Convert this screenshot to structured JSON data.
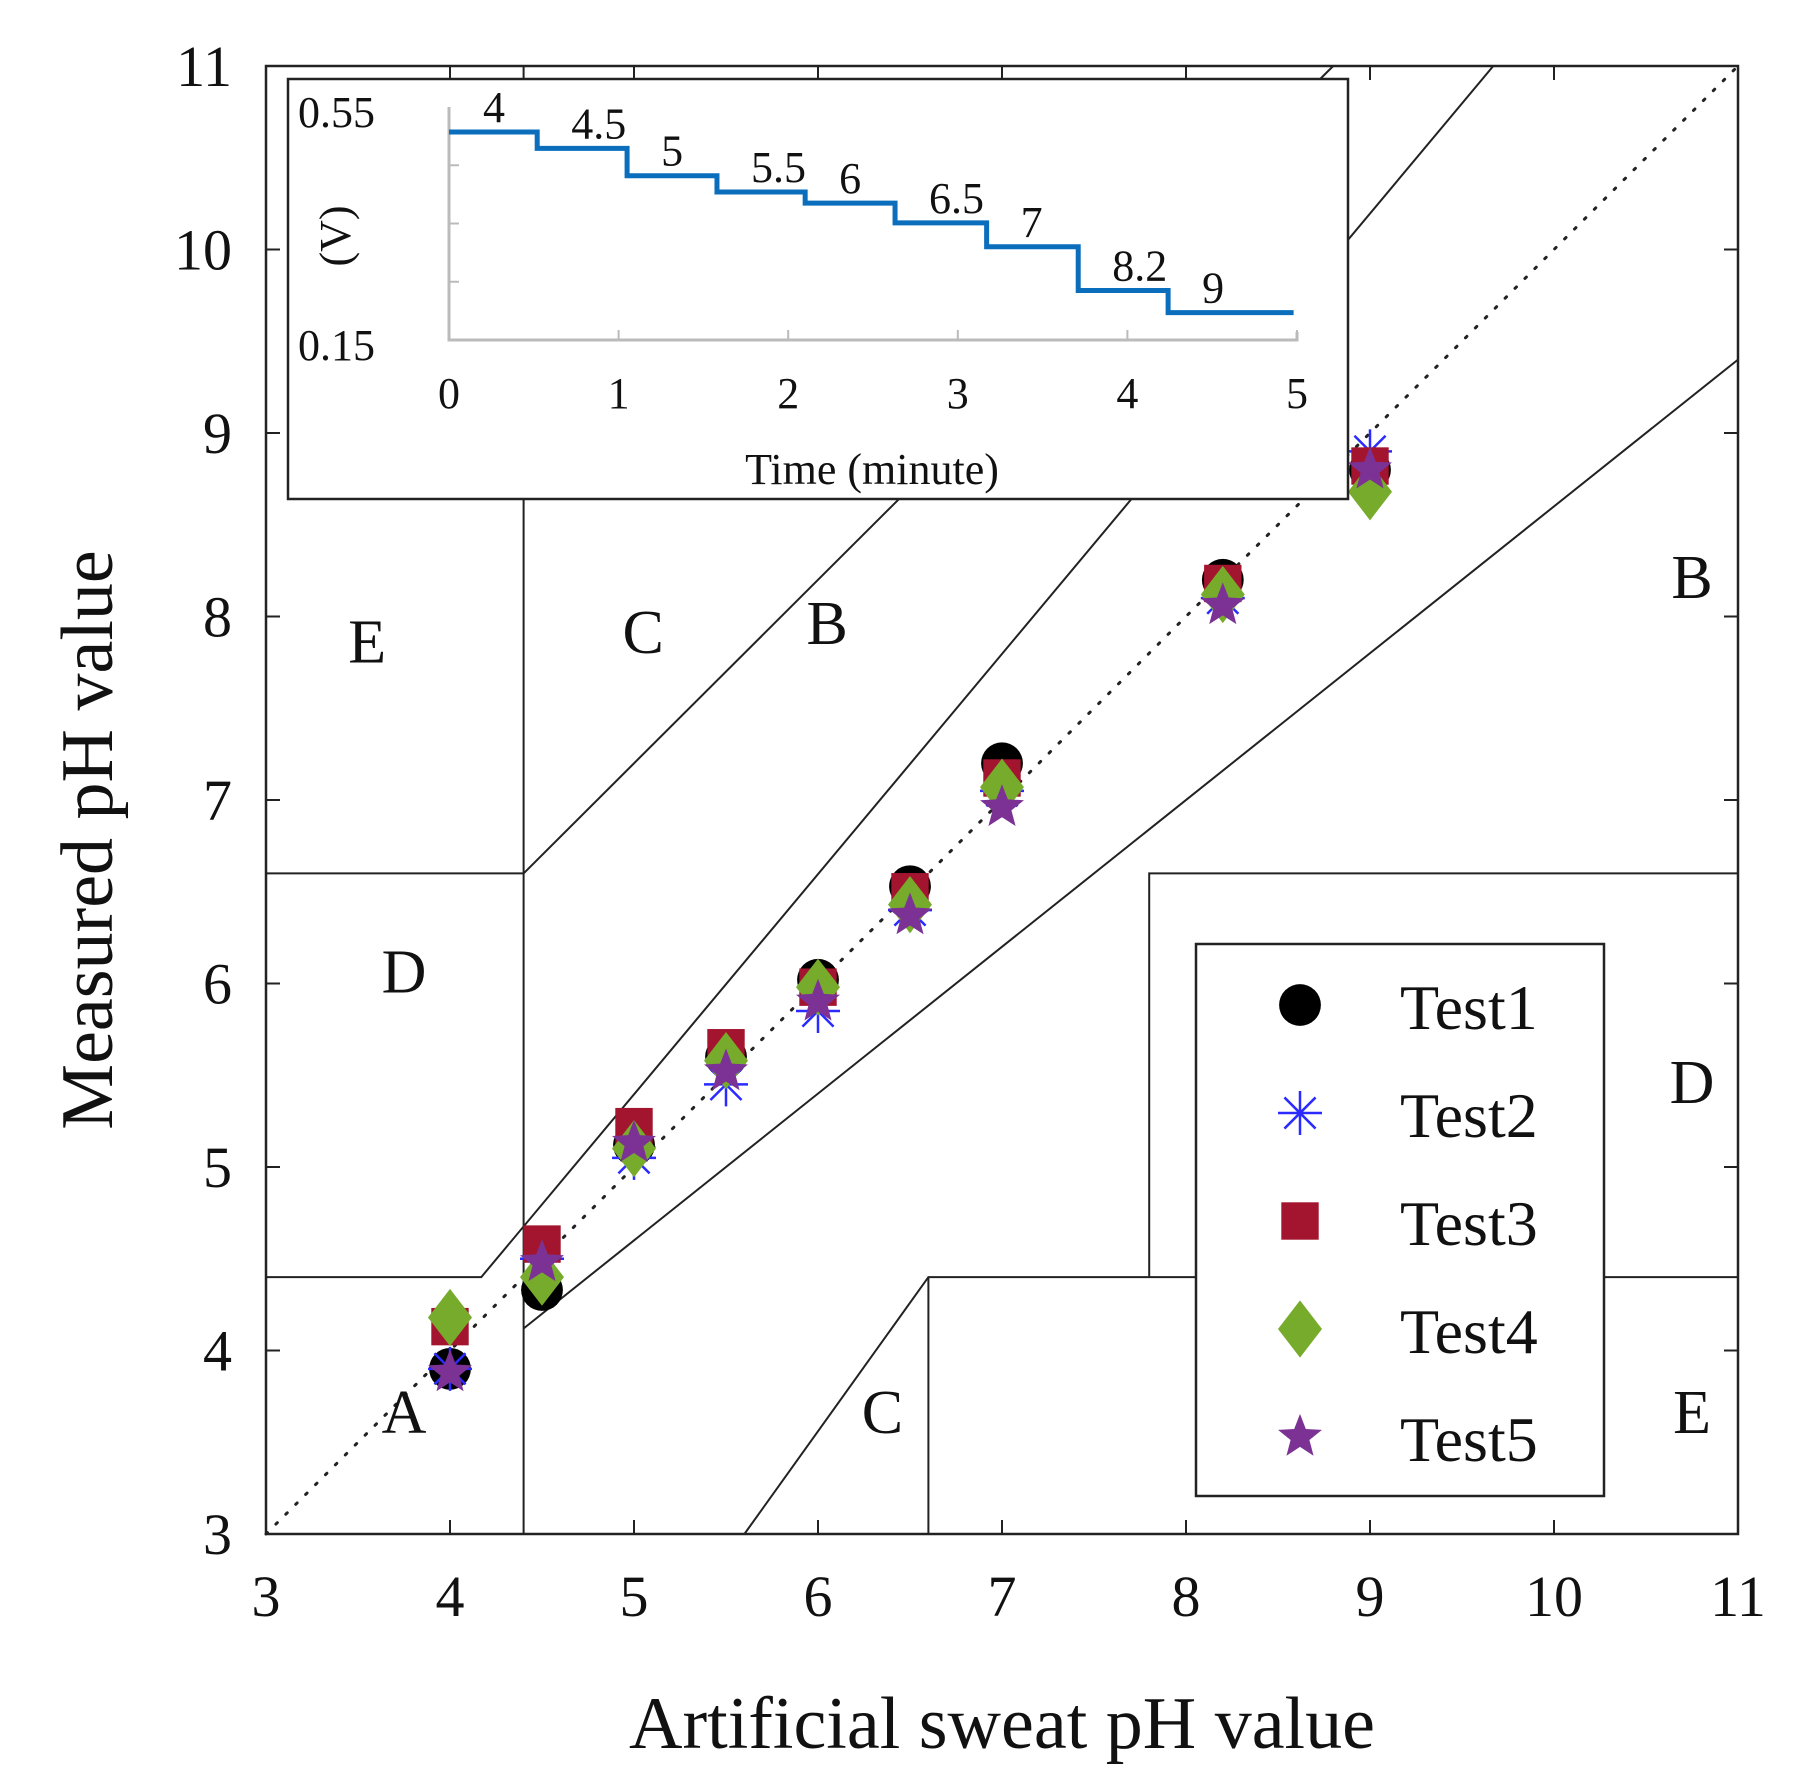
{
  "chart_data": {
    "type": "scatter",
    "title": "",
    "xlabel": "Artificial sweat pH value",
    "ylabel": "Measured pH value",
    "xlim": [
      3,
      11
    ],
    "ylim": [
      3,
      11
    ],
    "xticks": [
      "3",
      "4",
      "5",
      "6",
      "7",
      "8",
      "9",
      "10",
      "11"
    ],
    "yticks": [
      "3",
      "4",
      "5",
      "6",
      "7",
      "8",
      "9",
      "10",
      "11"
    ],
    "legend_position": "bottom-right",
    "x": [
      4,
      4.5,
      5,
      5.5,
      6,
      6.5,
      7,
      8.2,
      9
    ],
    "series": [
      {
        "name": "Test1",
        "marker": "circle",
        "color": "#000000",
        "values": [
          3.9,
          4.33,
          5.12,
          5.6,
          6.02,
          6.53,
          7.2,
          8.2,
          8.8
        ]
      },
      {
        "name": "Test2",
        "marker": "asterisk",
        "color": "#2b2bff",
        "values": [
          3.9,
          4.5,
          5.05,
          5.45,
          5.85,
          6.4,
          7.05,
          8.1,
          8.9
        ]
      },
      {
        "name": "Test3",
        "marker": "square",
        "color": "#a3152f",
        "values": [
          4.13,
          4.58,
          5.22,
          5.65,
          5.98,
          6.5,
          7.12,
          8.18,
          8.82
        ]
      },
      {
        "name": "Test4",
        "marker": "diamond",
        "color": "#77ab2b",
        "values": [
          4.18,
          4.4,
          5.1,
          5.58,
          5.98,
          6.43,
          7.07,
          8.12,
          8.68
        ]
      },
      {
        "name": "Test5",
        "marker": "star",
        "color": "#7b3294",
        "values": [
          3.88,
          4.48,
          5.13,
          5.52,
          5.9,
          6.37,
          6.96,
          8.06,
          8.8
        ]
      }
    ],
    "identity_line": {
      "from": [
        3,
        3
      ],
      "to": [
        11,
        11
      ],
      "style": "dotted"
    },
    "zone_lines": [
      [
        [
          4.4,
          3
        ],
        [
          4.4,
          11
        ]
      ],
      [
        [
          3,
          6.6
        ],
        [
          4.4,
          6.6
        ]
      ],
      [
        [
          3,
          4.4
        ],
        [
          4.17,
          4.4
        ],
        [
          9.67,
          11
        ]
      ],
      [
        [
          4.4,
          4.12
        ],
        [
          11,
          9.4
        ]
      ],
      [
        [
          4.4,
          6.6
        ],
        [
          8.8,
          11
        ]
      ],
      [
        [
          5.6,
          3
        ],
        [
          6.6,
          4.4
        ],
        [
          11,
          4.4
        ]
      ],
      [
        [
          6.6,
          3
        ],
        [
          6.6,
          4.4
        ]
      ],
      [
        [
          7.8,
          4.4
        ],
        [
          7.8,
          6.6
        ],
        [
          11,
          6.6
        ]
      ]
    ],
    "zone_labels": [
      {
        "text": "E",
        "x": 3.55,
        "y": 7.75
      },
      {
        "text": "C",
        "x": 5.05,
        "y": 7.8
      },
      {
        "text": "B",
        "x": 6.05,
        "y": 7.85
      },
      {
        "text": "B",
        "x": 10.75,
        "y": 8.1
      },
      {
        "text": "D",
        "x": 3.75,
        "y": 5.95
      },
      {
        "text": "D",
        "x": 10.75,
        "y": 5.35
      },
      {
        "text": "A",
        "x": 3.75,
        "y": 3.55
      },
      {
        "text": "C",
        "x": 6.35,
        "y": 3.55
      },
      {
        "text": "E",
        "x": 10.75,
        "y": 3.55
      }
    ],
    "inset": {
      "type": "line",
      "xlabel": "Time (minute)",
      "ylabel": "(V)",
      "xlim": [
        0,
        5
      ],
      "ylim": [
        0.15,
        0.55
      ],
      "xticks": [
        "0",
        "1",
        "2",
        "3",
        "4",
        "5"
      ],
      "yticks": [
        "0.15",
        "0.55"
      ],
      "color": "#0a6ebd",
      "steps": [
        {
          "label": "4",
          "t0": 0,
          "t1": 0.52,
          "v": 0.507
        },
        {
          "label": "4.5",
          "t0": 0.52,
          "t1": 1.05,
          "v": 0.479
        },
        {
          "label": "5",
          "t0": 1.05,
          "t1": 1.58,
          "v": 0.432
        },
        {
          "label": "5.5",
          "t0": 1.58,
          "t1": 2.1,
          "v": 0.404
        },
        {
          "label": "6",
          "t0": 2.1,
          "t1": 2.63,
          "v": 0.385
        },
        {
          "label": "6.5",
          "t0": 2.63,
          "t1": 3.17,
          "v": 0.351
        },
        {
          "label": "7",
          "t0": 3.17,
          "t1": 3.71,
          "v": 0.31
        },
        {
          "label": "8.2",
          "t0": 3.71,
          "t1": 4.24,
          "v": 0.235
        },
        {
          "label": "9",
          "t0": 4.24,
          "t1": 4.98,
          "v": 0.197
        }
      ]
    }
  }
}
